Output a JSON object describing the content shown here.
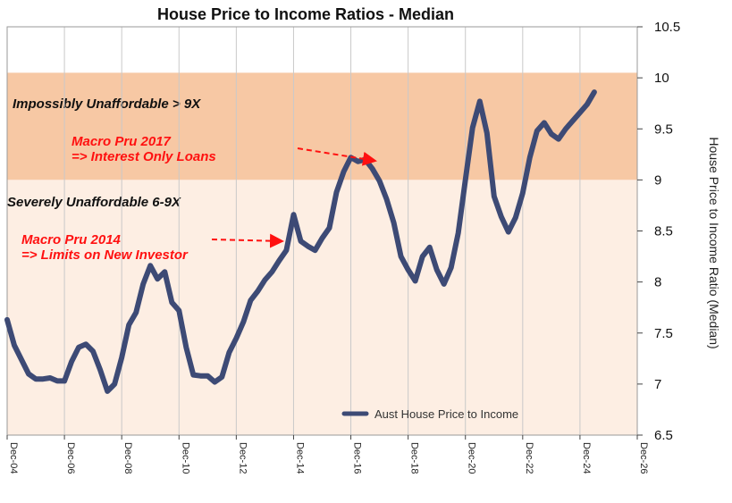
{
  "chart_data": {
    "type": "line",
    "title": "House Price to Income Ratios - Median",
    "ylabel": "House Price to Income Ratio (Median)",
    "ylim": [
      6.5,
      10.5
    ],
    "yticks": [
      6.5,
      7,
      7.5,
      8,
      8.5,
      9,
      9.5,
      10,
      10.5
    ],
    "xlim": [
      "2004-12",
      "2026-12"
    ],
    "xticks": [
      "Dec-04",
      "Dec-06",
      "Dec-08",
      "Dec-10",
      "Dec-12",
      "Dec-14",
      "Dec-16",
      "Dec-18",
      "Dec-20",
      "Dec-22",
      "Dec-24",
      "Dec-26"
    ],
    "grid": "vertical",
    "legend": "bottom-right",
    "bands": [
      {
        "label": "Impossibly Unaffordable > 9X",
        "from": 9,
        "to": 10.05,
        "color": "#f7c8a4"
      },
      {
        "label": "Severely Unaffordable 6-9X",
        "from": 6.5,
        "to": 9,
        "color": "#fdeee3"
      }
    ],
    "annotations": [
      {
        "lines": [
          "Macro Pru 2017",
          "=> Interest Only Loans"
        ],
        "arrow_to": "2017-06"
      },
      {
        "lines": [
          "Macro Pru 2014",
          "=> Limits on New Investor"
        ],
        "arrow_to": "2014-12"
      }
    ],
    "series": [
      {
        "name": "Aust House Price to Income",
        "color": "#3d4a75",
        "x": [
          "2004-12",
          "2005-03",
          "2005-06",
          "2005-09",
          "2005-12",
          "2006-03",
          "2006-06",
          "2006-09",
          "2006-12",
          "2007-03",
          "2007-06",
          "2007-09",
          "2007-12",
          "2008-03",
          "2008-06",
          "2008-09",
          "2008-12",
          "2009-03",
          "2009-06",
          "2009-09",
          "2009-12",
          "2010-03",
          "2010-06",
          "2010-09",
          "2010-12",
          "2011-03",
          "2011-06",
          "2011-09",
          "2011-12",
          "2012-03",
          "2012-06",
          "2012-09",
          "2012-12",
          "2013-03",
          "2013-06",
          "2013-09",
          "2013-12",
          "2014-03",
          "2014-06",
          "2014-09",
          "2014-12",
          "2015-03",
          "2015-06",
          "2015-09",
          "2015-12",
          "2016-03",
          "2016-06",
          "2016-09",
          "2016-12",
          "2017-03",
          "2017-06",
          "2017-09",
          "2017-12",
          "2018-03",
          "2018-06",
          "2018-09",
          "2018-12",
          "2019-03",
          "2019-06",
          "2019-09",
          "2019-12",
          "2020-03",
          "2020-06",
          "2020-09",
          "2020-12",
          "2021-03",
          "2021-06",
          "2021-09",
          "2021-12",
          "2022-03",
          "2022-06",
          "2022-09",
          "2022-12",
          "2023-03",
          "2023-06",
          "2023-09",
          "2023-12",
          "2024-03",
          "2024-06",
          "2024-09",
          "2024-12",
          "2025-03",
          "2025-06"
        ],
        "values": [
          7.63,
          7.38,
          7.24,
          7.1,
          7.05,
          7.05,
          7.06,
          7.03,
          7.03,
          7.22,
          7.36,
          7.39,
          7.32,
          7.14,
          6.93,
          7.0,
          7.26,
          7.58,
          7.7,
          7.98,
          8.16,
          8.03,
          8.1,
          7.8,
          7.72,
          7.36,
          7.09,
          7.08,
          7.08,
          7.02,
          7.07,
          7.31,
          7.45,
          7.61,
          7.82,
          7.91,
          8.02,
          8.1,
          8.21,
          8.31,
          8.66,
          8.4,
          8.35,
          8.31,
          8.43,
          8.53,
          8.88,
          9.08,
          9.22,
          9.18,
          9.2,
          9.11,
          8.99,
          8.81,
          8.58,
          8.25,
          8.12,
          8.01,
          8.25,
          8.34,
          8.12,
          7.98,
          8.14,
          8.48,
          9.0,
          9.51,
          9.77,
          9.46,
          8.84,
          8.64,
          8.49,
          8.63,
          8.87,
          9.22,
          9.48,
          9.56,
          9.45,
          9.4,
          9.5,
          9.58,
          9.66,
          9.74,
          9.86
        ]
      }
    ]
  }
}
